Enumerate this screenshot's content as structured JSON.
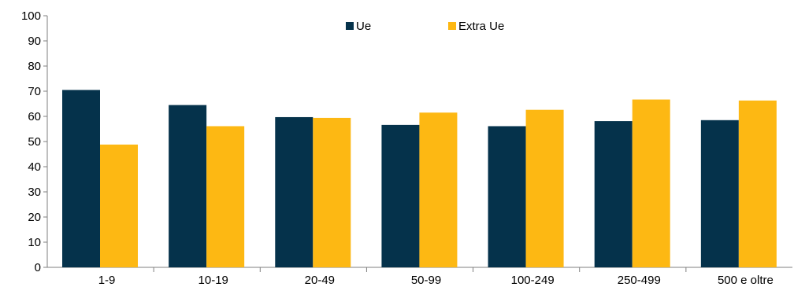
{
  "chart_data": {
    "type": "bar",
    "title": "",
    "xlabel": "",
    "ylabel": "",
    "categories": [
      "1-9",
      "10-19",
      "20-49",
      "50-99",
      "100-249",
      "250-499",
      "500 e oltre"
    ],
    "series": [
      {
        "name": "Ue",
        "color": "#05324b",
        "values": [
          70.5,
          64.5,
          59.7,
          56.6,
          56.1,
          58.1,
          58.5
        ]
      },
      {
        "name": "Extra Ue",
        "color": "#fdb813",
        "values": [
          48.8,
          56.1,
          59.4,
          61.5,
          62.6,
          66.7,
          66.3
        ]
      }
    ],
    "ylim": [
      0,
      100
    ],
    "yticks": [
      0,
      10,
      20,
      30,
      40,
      50,
      60,
      70,
      80,
      90,
      100
    ],
    "grid": false,
    "legend_position": "top-center"
  }
}
